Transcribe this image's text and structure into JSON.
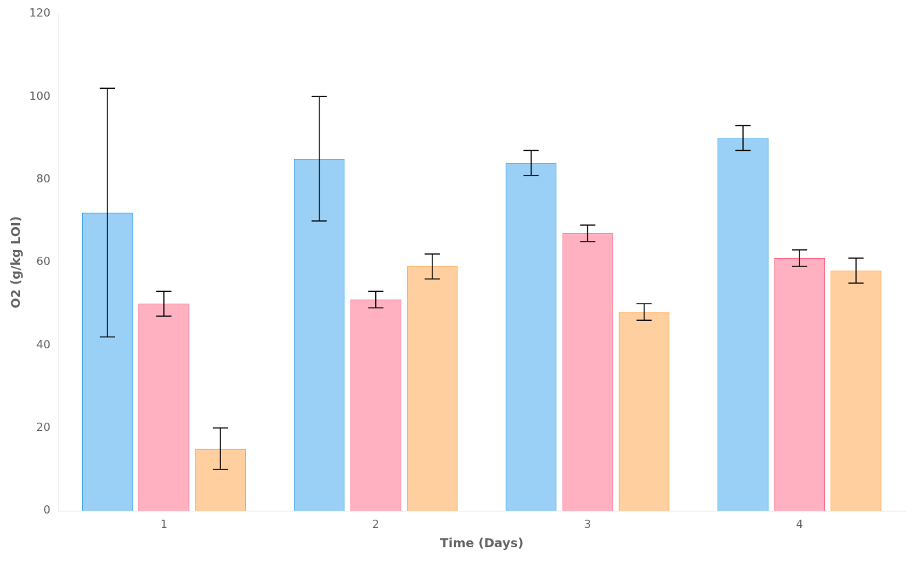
{
  "chart_data": {
    "type": "bar",
    "xlabel": "Time (Days)",
    "ylabel": "O2 (g/kg LOI)",
    "categories": [
      "1",
      "2",
      "3",
      "4"
    ],
    "series": [
      {
        "values": [
          72,
          85,
          84,
          90
        ],
        "errors": [
          30,
          15,
          3,
          3
        ]
      },
      {
        "values": [
          50,
          51,
          67,
          61
        ],
        "errors": [
          3,
          2,
          2,
          2
        ]
      },
      {
        "values": [
          15,
          59,
          48,
          58
        ],
        "errors": [
          5,
          3,
          2,
          3
        ]
      }
    ],
    "ylim": [
      0,
      120
    ],
    "yticks": [
      0,
      20,
      40,
      60,
      80,
      100,
      120
    ],
    "grid": false
  }
}
